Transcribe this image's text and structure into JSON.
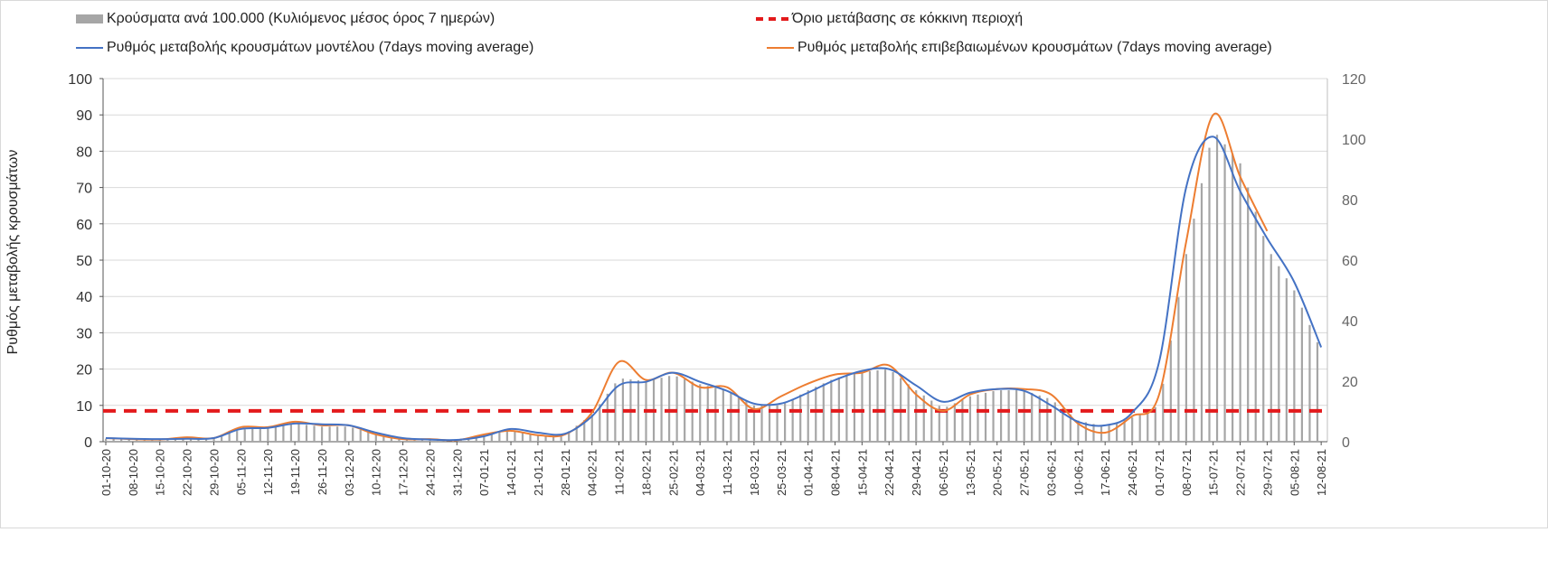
{
  "chart_data": {
    "type": "bar+line",
    "legend": [
      {
        "label": "Κρούσματα ανά 100.000 (Κυλιόμενος μέσος όρος 7 ημερών)",
        "color": "#a6a6a6",
        "kind": "bar"
      },
      {
        "label": "Όριο μετάβασης σε κόκκινη περιοχή",
        "color": "#e31a1c",
        "kind": "dashed"
      },
      {
        "label": "Ρυθμός μεταβολής κρουσμάτων μοντέλου (7days moving average)",
        "color": "#4472c4",
        "kind": "line"
      },
      {
        "label": "Ρυθμός μεταβολής επιβεβαιωμένων κρουσμάτων (7days moving average)",
        "color": "#ed7d31",
        "kind": "line"
      }
    ],
    "ylabel": "Ρυθμός μεταβολής κρουσμάτων",
    "ylim": [
      0,
      100
    ],
    "yticks": [
      0,
      10,
      20,
      30,
      40,
      50,
      60,
      70,
      80,
      90,
      100
    ],
    "y2lim": [
      0,
      120
    ],
    "y2ticks": [
      0,
      20,
      40,
      60,
      80,
      100,
      120
    ],
    "categories": [
      "01-10-20",
      "08-10-20",
      "15-10-20",
      "22-10-20",
      "29-10-20",
      "05-11-20",
      "12-11-20",
      "19-11-20",
      "26-11-20",
      "03-12-20",
      "10-12-20",
      "17-12-20",
      "24-12-20",
      "31-12-20",
      "07-01-21",
      "14-01-21",
      "21-01-21",
      "28-01-21",
      "04-02-21",
      "11-02-21",
      "18-02-21",
      "25-02-21",
      "04-03-21",
      "11-03-21",
      "18-03-21",
      "25-03-21",
      "01-04-21",
      "08-04-21",
      "15-04-21",
      "22-04-21",
      "29-04-21",
      "06-05-21",
      "13-05-21",
      "20-05-21",
      "27-05-21",
      "03-06-21",
      "10-06-21",
      "17-06-21",
      "24-06-21",
      "01-07-21",
      "08-07-21",
      "15-07-21",
      "22-07-21",
      "29-07-21",
      "05-08-21",
      "12-08-21"
    ],
    "bars_right_axis": [
      1,
      0.6,
      0.5,
      1,
      1,
      4,
      4.5,
      6,
      5,
      5,
      2.5,
      0.8,
      0.6,
      0.5,
      2,
      4,
      2,
      2.5,
      9,
      21,
      20,
      22,
      19,
      17,
      12,
      12,
      17,
      21,
      23,
      24,
      17,
      11,
      15,
      17,
      17,
      14,
      7,
      5,
      8,
      12,
      62,
      103,
      92,
      64,
      50,
      30
    ],
    "threshold": 8.5,
    "model_line": [
      1,
      0.8,
      0.7,
      0.8,
      1,
      3.5,
      3.8,
      5,
      4.8,
      4.5,
      2.5,
      1,
      0.6,
      0.5,
      1.5,
      3.5,
      2.5,
      2.2,
      7,
      15.5,
      16.5,
      19,
      16.5,
      14,
      10.5,
      10.5,
      13.5,
      17,
      19.5,
      20,
      15.5,
      11,
      13.5,
      14.5,
      14,
      10,
      5.5,
      4.5,
      8,
      22,
      70,
      84,
      69,
      56,
      44,
      26
    ],
    "confirmed_line": [
      1,
      0.7,
      0.6,
      1.2,
      1,
      4,
      4,
      5.5,
      4.5,
      4.5,
      2,
      0.7,
      0.7,
      0.4,
      2,
      3,
      1.8,
      2,
      8,
      22,
      17,
      19,
      15,
      15,
      9,
      12.5,
      16,
      18.5,
      19,
      21,
      13,
      8.5,
      13,
      14.5,
      14.5,
      13,
      5,
      2.5,
      7,
      13,
      55,
      90,
      73,
      58,
      null,
      null
    ],
    "grid": true
  }
}
